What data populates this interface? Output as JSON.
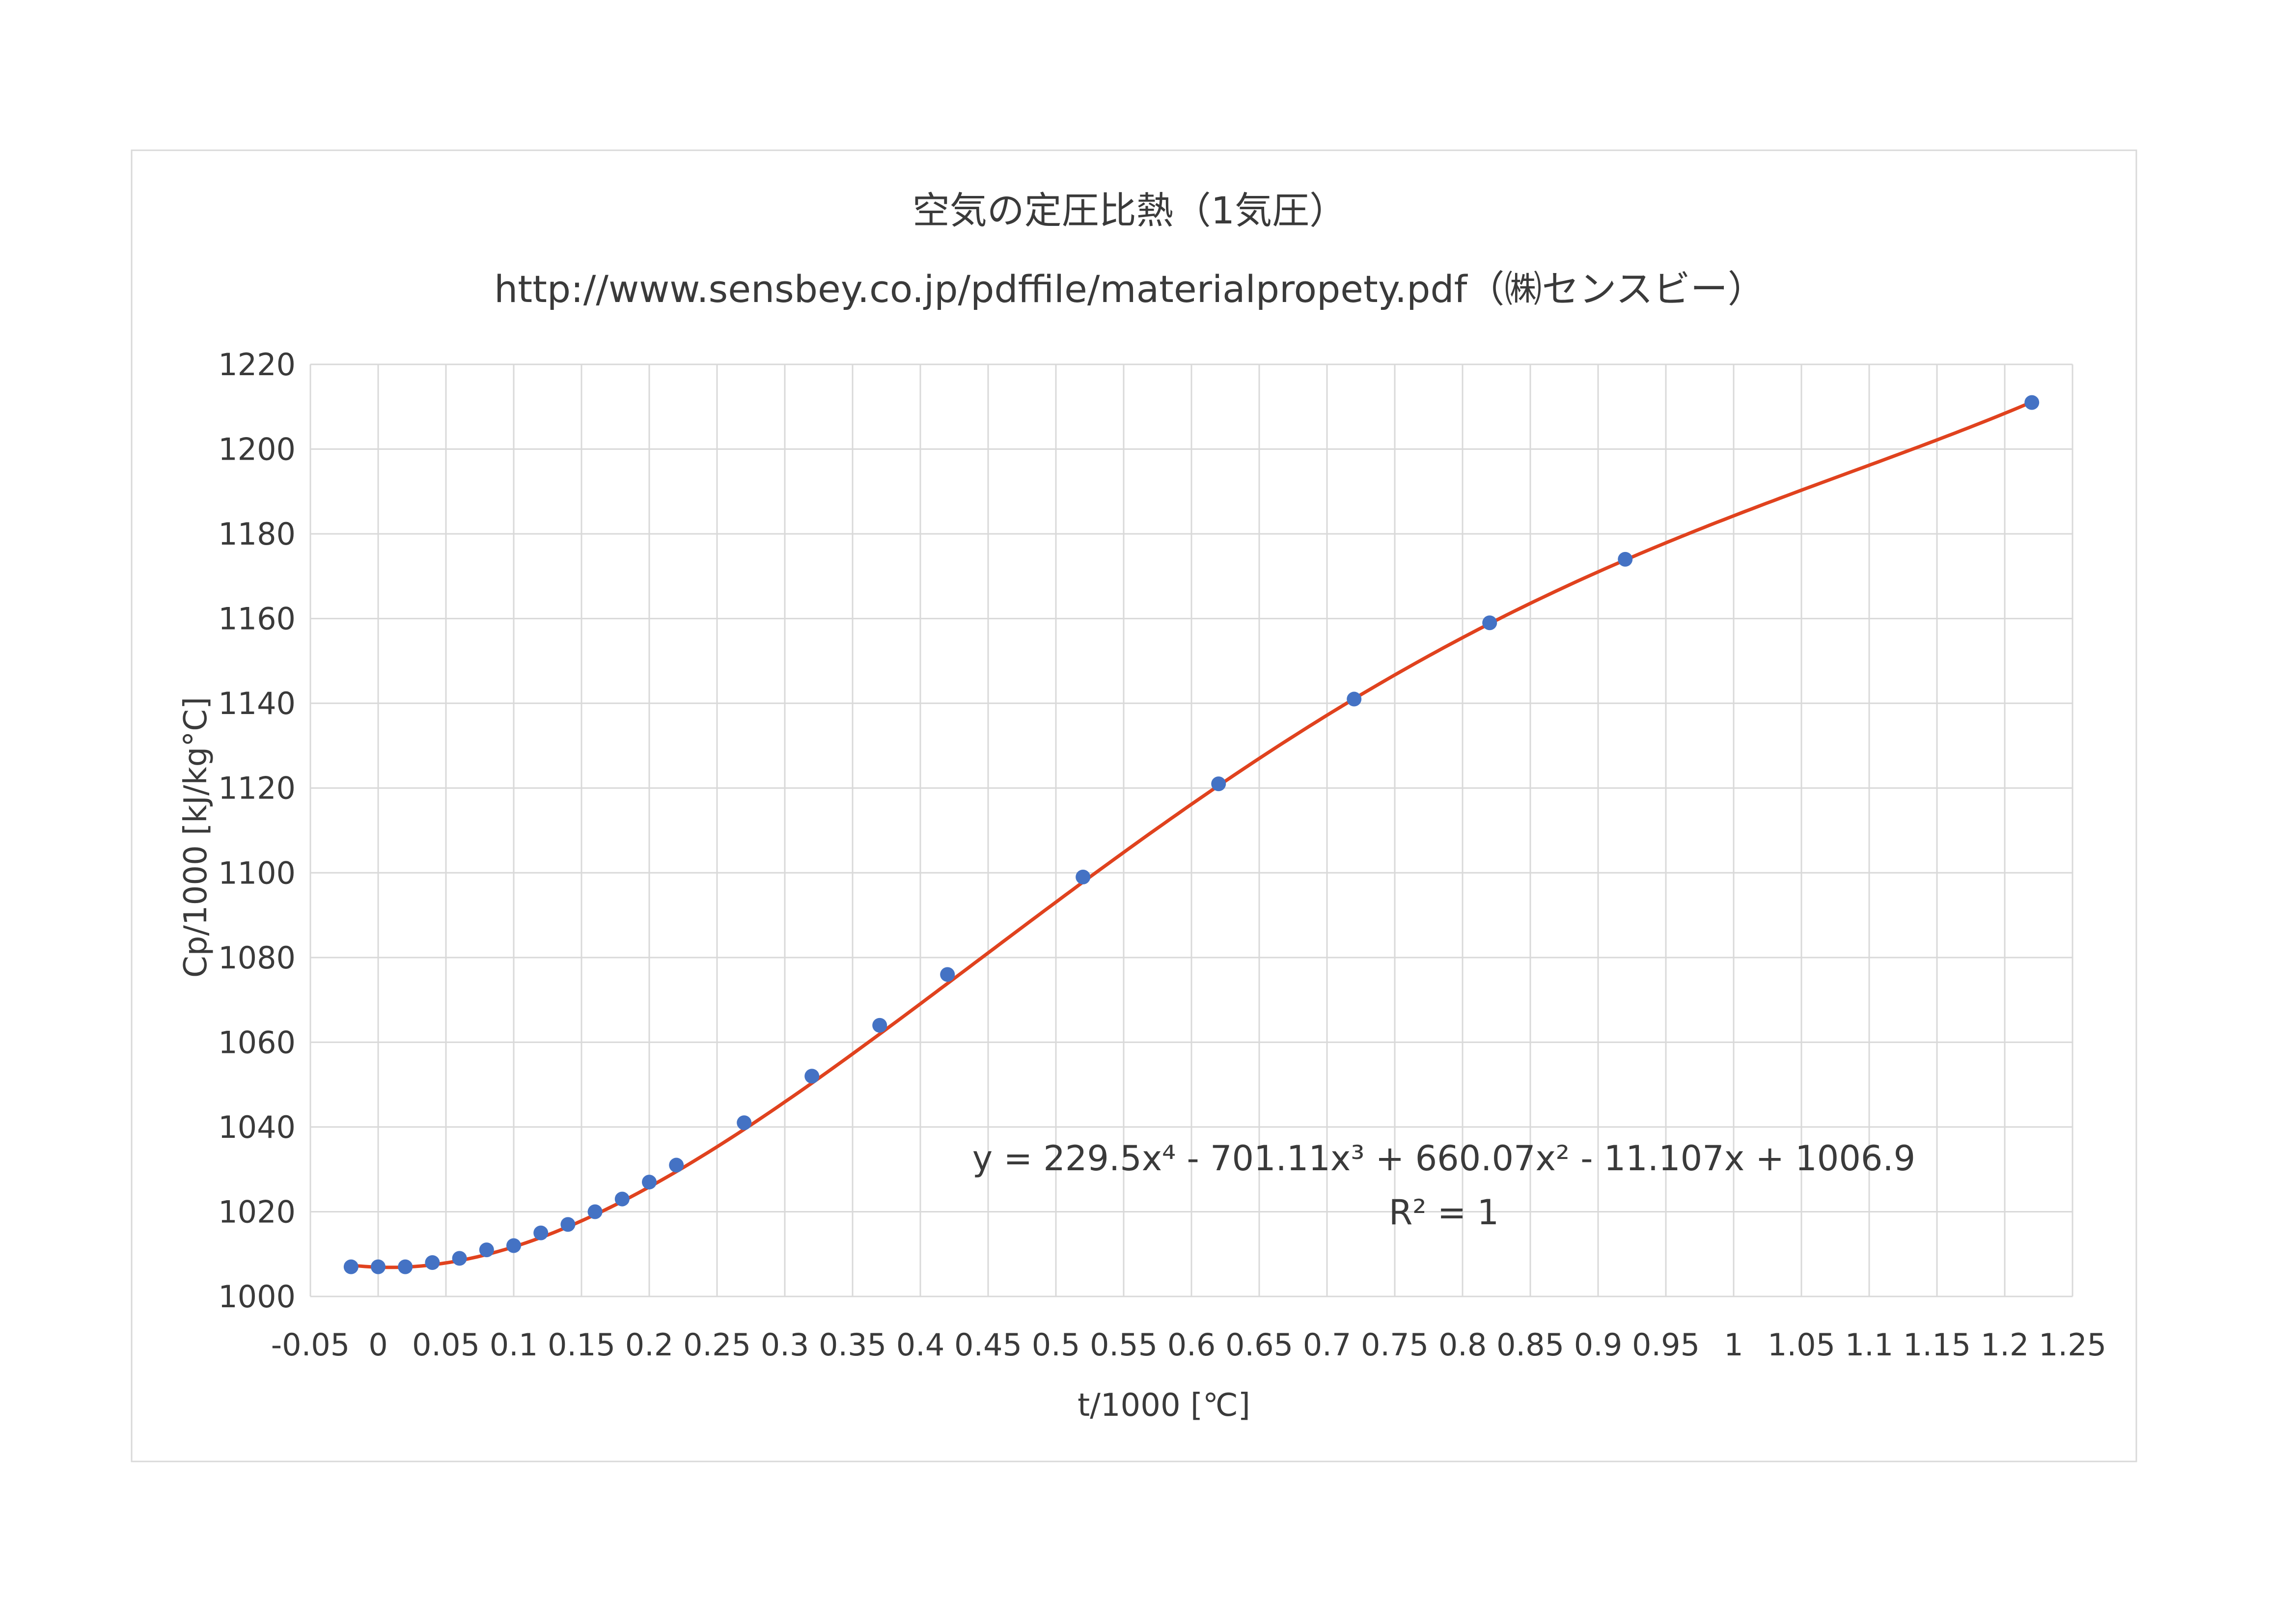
{
  "chart_data": {
    "type": "scatter",
    "title": "空気の定圧比熱（1気圧）",
    "subtitle": "http://www.sensbey.co.jp/pdffile/materialpropety.pdf（㈱センスビー）",
    "xlabel": "t/1000 [℃]",
    "ylabel": "Cp/1000 [kJ/kg°C]",
    "xlim": [
      -0.05,
      1.25
    ],
    "ylim": [
      1000,
      1220
    ],
    "xticks": [
      "-0.05",
      "0",
      "0.05",
      "0.1",
      "0.15",
      "0.2",
      "0.25",
      "0.3",
      "0.35",
      "0.4",
      "0.45",
      "0.5",
      "0.55",
      "0.6",
      "0.65",
      "0.7",
      "0.75",
      "0.8",
      "0.85",
      "0.9",
      "0.95",
      "1",
      "1.05",
      "1.1",
      "1.15",
      "1.2",
      "1.25"
    ],
    "yticks": [
      "1000",
      "1020",
      "1040",
      "1060",
      "1080",
      "1100",
      "1120",
      "1140",
      "1160",
      "1180",
      "1200",
      "1220"
    ],
    "grid": true,
    "series": [
      {
        "marker_color": "#4472c4",
        "x": [
          -0.02,
          0.0,
          0.02,
          0.04,
          0.06,
          0.08,
          0.1,
          0.12,
          0.14,
          0.16,
          0.18,
          0.2,
          0.22,
          0.27,
          0.32,
          0.37,
          0.42,
          0.52,
          0.62,
          0.72,
          0.82,
          0.92,
          1.22
        ],
        "y": [
          1007,
          1007,
          1007,
          1008,
          1009,
          1011,
          1012,
          1015,
          1017,
          1020,
          1023,
          1027,
          1031,
          1041,
          1052,
          1064,
          1076,
          1099,
          1121,
          1141,
          1159,
          1174,
          1211
        ]
      }
    ],
    "trendline": {
      "type": "polynomial",
      "order": 4,
      "color": "#e0421e",
      "coefficients": [
        1006.9,
        -11.107,
        660.07,
        -701.11,
        229.5
      ],
      "equation": "y = 229.5x⁴ - 701.11x³ + 660.07x² - 11.107x + 1006.9",
      "r_squared": "R² = 1"
    }
  }
}
